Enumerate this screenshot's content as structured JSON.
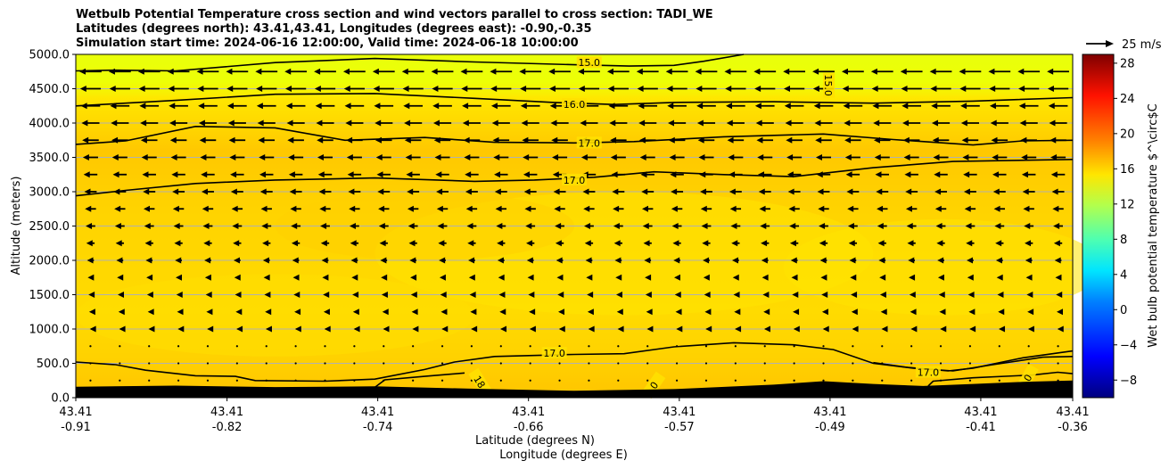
{
  "title": {
    "line1": "Wetbulb Potential Temperature cross section and wind vectors parallel to cross section: TADI_WE",
    "line2": "Latitudes (degrees north): 43.41,43.41, Longitudes (degrees east): -0.90,-0.35",
    "line3": "Simulation start time: 2024-06-16 12:00:00, Valid time: 2024-06-18 10:00:00"
  },
  "chart_data": {
    "type": "cross-section contour",
    "ylabel": "Altitude (meters)",
    "xlabel_lat": "Latitude (degrees N)",
    "xlabel_lon": "Longitude (degrees E)",
    "ylim": [
      0,
      5000
    ],
    "xlim": [
      0,
      1
    ],
    "y_ticks": [
      0,
      500,
      1000,
      1500,
      2000,
      2500,
      3000,
      3500,
      4000,
      4500,
      5000
    ],
    "y_tick_labels": [
      "0.0",
      "500.0",
      "1000.0",
      "1500.0",
      "2000.0",
      "2500.0",
      "3000.0",
      "3500.0",
      "4000.0",
      "4500.0",
      "5000.0"
    ],
    "x_ticks": [
      {
        "pos": 0.0,
        "lat": "43.41",
        "lon": "-0.91"
      },
      {
        "pos": 0.1517,
        "lat": "43.41",
        "lon": "-0.82"
      },
      {
        "pos": 0.3029,
        "lat": "43.41",
        "lon": "-0.74"
      },
      {
        "pos": 0.4541,
        "lat": "43.41",
        "lon": "-0.66"
      },
      {
        "pos": 0.6054,
        "lat": "43.41",
        "lon": "-0.57"
      },
      {
        "pos": 0.7566,
        "lat": "43.41",
        "lon": "-0.49"
      },
      {
        "pos": 0.9078,
        "lat": "43.41",
        "lon": "-0.41"
      },
      {
        "pos": 1.0,
        "lat": "43.41",
        "lon": "-0.36"
      }
    ],
    "colorbar": {
      "label": "Wet bulb potential temperature $^\\circ$C",
      "range": [
        -10,
        29
      ],
      "ticks": [
        "-8",
        "-4",
        "0",
        "4",
        "8",
        "12",
        "16",
        "20",
        "24",
        "28"
      ],
      "tick_values": [
        -8,
        -4,
        0,
        4,
        8,
        12,
        16,
        20,
        24,
        28
      ]
    },
    "wind_reference": {
      "label": "25 m/s"
    },
    "contours": [
      {
        "level": 15.0,
        "label": "15.0",
        "label_x": 0.515,
        "label_y": 4880,
        "points": [
          [
            0,
            4760
          ],
          [
            0.04,
            4770
          ],
          [
            0.1,
            4760
          ],
          [
            0.2,
            4880
          ],
          [
            0.3,
            4940
          ],
          [
            0.4,
            4890
          ],
          [
            0.5,
            4850
          ],
          [
            0.555,
            4830
          ],
          [
            0.6,
            4840
          ],
          [
            0.63,
            4900
          ],
          [
            0.67,
            5000
          ]
        ]
      },
      {
        "level": 15.0,
        "label": "15.0",
        "label_x": 0.755,
        "label_y": 4550,
        "points": [],
        "rotate": 90
      },
      {
        "level": 16.0,
        "label": "16.0",
        "label_x": 0.5,
        "label_y": 4270,
        "points": [
          [
            0,
            4250
          ],
          [
            0.1,
            4330
          ],
          [
            0.2,
            4420
          ],
          [
            0.3,
            4430
          ],
          [
            0.4,
            4360
          ],
          [
            0.48,
            4300
          ],
          [
            0.54,
            4270
          ],
          [
            0.6,
            4300
          ],
          [
            0.7,
            4310
          ],
          [
            0.8,
            4290
          ],
          [
            0.9,
            4320
          ],
          [
            1,
            4370
          ]
        ]
      },
      {
        "level": 17.0,
        "label": "17.0",
        "label_x": 0.515,
        "label_y": 3710,
        "points": [
          [
            0,
            3690
          ],
          [
            0.05,
            3740
          ],
          [
            0.12,
            3950
          ],
          [
            0.2,
            3930
          ],
          [
            0.27,
            3750
          ],
          [
            0.35,
            3790
          ],
          [
            0.42,
            3720
          ],
          [
            0.5,
            3710
          ],
          [
            0.56,
            3730
          ],
          [
            0.65,
            3800
          ],
          [
            0.75,
            3840
          ],
          [
            0.82,
            3760
          ],
          [
            0.9,
            3680
          ],
          [
            0.95,
            3740
          ],
          [
            1,
            3750
          ]
        ]
      },
      {
        "level": 17.0,
        "label": "17.0",
        "label_x": 0.5,
        "label_y": 3170,
        "points": [
          [
            0,
            2940
          ],
          [
            0.05,
            3020
          ],
          [
            0.12,
            3120
          ],
          [
            0.2,
            3170
          ],
          [
            0.3,
            3200
          ],
          [
            0.4,
            3150
          ],
          [
            0.46,
            3170
          ],
          [
            0.52,
            3210
          ],
          [
            0.58,
            3290
          ],
          [
            0.65,
            3250
          ],
          [
            0.72,
            3220
          ],
          [
            0.8,
            3350
          ],
          [
            0.88,
            3440
          ],
          [
            1,
            3470
          ]
        ]
      },
      {
        "level": 17.0,
        "label": "17.0",
        "label_x": 0.48,
        "label_y": 650,
        "points": [
          [
            0,
            520
          ],
          [
            0.04,
            480
          ],
          [
            0.07,
            400
          ],
          [
            0.12,
            320
          ],
          [
            0.16,
            310
          ],
          [
            0.18,
            250
          ],
          [
            0.25,
            240
          ],
          [
            0.3,
            270
          ],
          [
            0.35,
            410
          ],
          [
            0.38,
            520
          ],
          [
            0.42,
            600
          ],
          [
            0.5,
            630
          ],
          [
            0.55,
            640
          ],
          [
            0.6,
            740
          ],
          [
            0.66,
            800
          ],
          [
            0.72,
            770
          ],
          [
            0.76,
            700
          ],
          [
            0.8,
            500
          ],
          [
            0.84,
            430
          ],
          [
            0.88,
            390
          ],
          [
            0.92,
            480
          ],
          [
            0.97,
            590
          ],
          [
            1,
            600
          ]
        ]
      },
      {
        "level": 17.0,
        "label": "17.0",
        "label_x": 0.855,
        "label_y": 370,
        "points": [
          [
            0.8,
            510
          ],
          [
            0.835,
            440
          ],
          [
            0.875,
            390
          ],
          [
            0.9,
            430
          ],
          [
            0.95,
            580
          ],
          [
            1,
            680
          ]
        ]
      },
      {
        "level": 18.0,
        "label": "18",
        "label_x": 0.405,
        "label_y": 230,
        "rotate": 58,
        "points": [
          [
            0.3,
            150
          ],
          [
            0.31,
            260
          ],
          [
            0.35,
            310
          ],
          [
            0.39,
            360
          ]
        ]
      },
      {
        "level": 18.0,
        "label": "0",
        "label_x": 0.58,
        "label_y": 180,
        "rotate": -55,
        "points": []
      },
      {
        "level": 18.0,
        "label": "0",
        "label_x": 0.955,
        "label_y": 290,
        "rotate": -60,
        "points": [
          [
            0.855,
            170
          ],
          [
            0.86,
            240
          ],
          [
            0.9,
            290
          ],
          [
            0.96,
            330
          ],
          [
            0.985,
            370
          ],
          [
            1,
            350
          ]
        ]
      }
    ],
    "terrain": [
      [
        0,
        160
      ],
      [
        0.1,
        175
      ],
      [
        0.2,
        155
      ],
      [
        0.3,
        165
      ],
      [
        0.4,
        130
      ],
      [
        0.5,
        100
      ],
      [
        0.6,
        125
      ],
      [
        0.7,
        190
      ],
      [
        0.75,
        240
      ],
      [
        0.8,
        200
      ],
      [
        0.85,
        170
      ],
      [
        0.9,
        200
      ],
      [
        0.95,
        230
      ],
      [
        1,
        250
      ]
    ],
    "wind_rows": [
      {
        "alt": 4750,
        "u": -16
      },
      {
        "alt": 4500,
        "u": -15
      },
      {
        "alt": 4250,
        "u": -14
      },
      {
        "alt": 4000,
        "u": -13
      },
      {
        "alt": 3750,
        "u": -12
      },
      {
        "alt": 3500,
        "u": -11
      },
      {
        "alt": 3250,
        "u": -10
      },
      {
        "alt": 3000,
        "u": -9
      },
      {
        "alt": 2750,
        "u": -8
      },
      {
        "alt": 2500,
        "u": -7
      },
      {
        "alt": 2250,
        "u": -6
      },
      {
        "alt": 2000,
        "u": -5
      },
      {
        "alt": 1750,
        "u": -4
      },
      {
        "alt": 1500,
        "u": -3
      },
      {
        "alt": 1250,
        "u": -2
      },
      {
        "alt": 1000,
        "u": -1
      },
      {
        "alt": 750,
        "u": -0.5
      },
      {
        "alt": 500,
        "u": -0.3
      },
      {
        "alt": 250,
        "u": -0.2
      }
    ]
  }
}
